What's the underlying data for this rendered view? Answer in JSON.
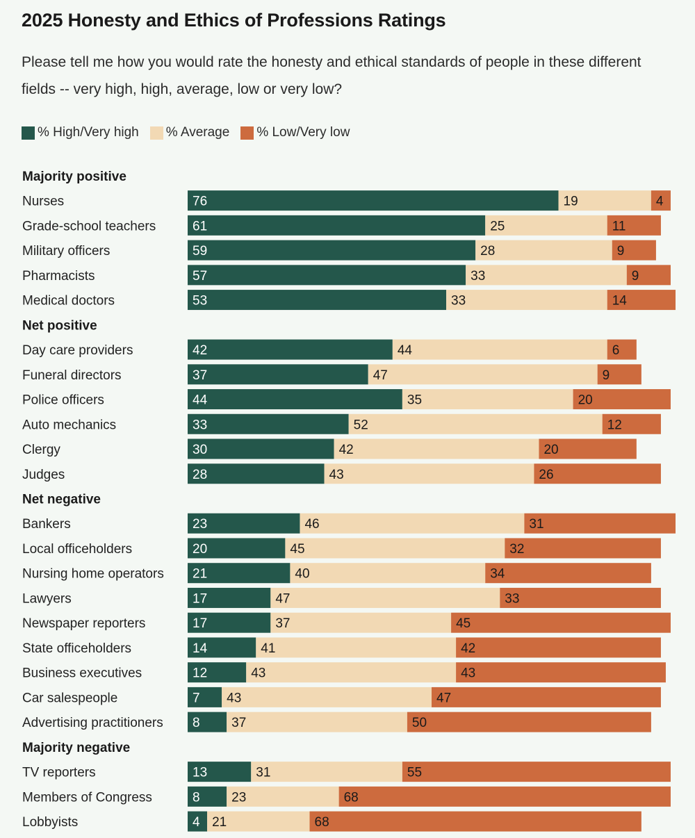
{
  "title": "2025 Honesty and Ethics of Professions Ratings",
  "subtitle": "Please tell me how you would rate the honesty and ethical standards of people in these different fields -- very high, high, average, low or very low?",
  "legend": {
    "high": "% High/Very high",
    "average": "% Average",
    "low": "% Low/Very low"
  },
  "colors": {
    "high": "#24574b",
    "average": "#f2d9b4",
    "low": "#cd6b3e"
  },
  "chart_data": {
    "type": "bar",
    "orientation": "horizontal",
    "stacked": true,
    "series_names": [
      "% High/Very high",
      "% Average",
      "% Low/Very low"
    ],
    "xlim": [
      0,
      100
    ],
    "legend_position": "top-left",
    "grid": false,
    "groups": [
      {
        "name": "Majority positive",
        "rows": [
          {
            "label": "Nurses",
            "values": [
              76,
              19,
              4
            ]
          },
          {
            "label": "Grade-school teachers",
            "values": [
              61,
              25,
              11
            ]
          },
          {
            "label": "Military officers",
            "values": [
              59,
              28,
              9
            ]
          },
          {
            "label": "Pharmacists",
            "values": [
              57,
              33,
              9
            ]
          },
          {
            "label": "Medical doctors",
            "values": [
              53,
              33,
              14
            ]
          }
        ]
      },
      {
        "name": "Net positive",
        "rows": [
          {
            "label": "Day care providers",
            "values": [
              42,
              44,
              6
            ]
          },
          {
            "label": "Funeral directors",
            "values": [
              37,
              47,
              9
            ]
          },
          {
            "label": "Police officers",
            "values": [
              44,
              35,
              20
            ]
          },
          {
            "label": "Auto mechanics",
            "values": [
              33,
              52,
              12
            ]
          },
          {
            "label": "Clergy",
            "values": [
              30,
              42,
              20
            ]
          },
          {
            "label": "Judges",
            "values": [
              28,
              43,
              26
            ]
          }
        ]
      },
      {
        "name": "Net negative",
        "rows": [
          {
            "label": "Bankers",
            "values": [
              23,
              46,
              31
            ]
          },
          {
            "label": "Local officeholders",
            "values": [
              20,
              45,
              32
            ]
          },
          {
            "label": "Nursing home operators",
            "values": [
              21,
              40,
              34
            ]
          },
          {
            "label": "Lawyers",
            "values": [
              17,
              47,
              33
            ]
          },
          {
            "label": "Newspaper reporters",
            "values": [
              17,
              37,
              45
            ]
          },
          {
            "label": "State officeholders",
            "values": [
              14,
              41,
              42
            ]
          },
          {
            "label": "Business executives",
            "values": [
              12,
              43,
              43
            ]
          },
          {
            "label": "Car salespeople",
            "values": [
              7,
              43,
              47
            ]
          },
          {
            "label": "Advertising practitioners",
            "values": [
              8,
              37,
              50
            ]
          }
        ]
      },
      {
        "name": "Majority negative",
        "rows": [
          {
            "label": "TV reporters",
            "values": [
              13,
              31,
              55
            ]
          },
          {
            "label": "Members of Congress",
            "values": [
              8,
              23,
              68
            ]
          },
          {
            "label": "Lobbyists",
            "values": [
              4,
              21,
              68
            ]
          }
        ]
      }
    ]
  }
}
